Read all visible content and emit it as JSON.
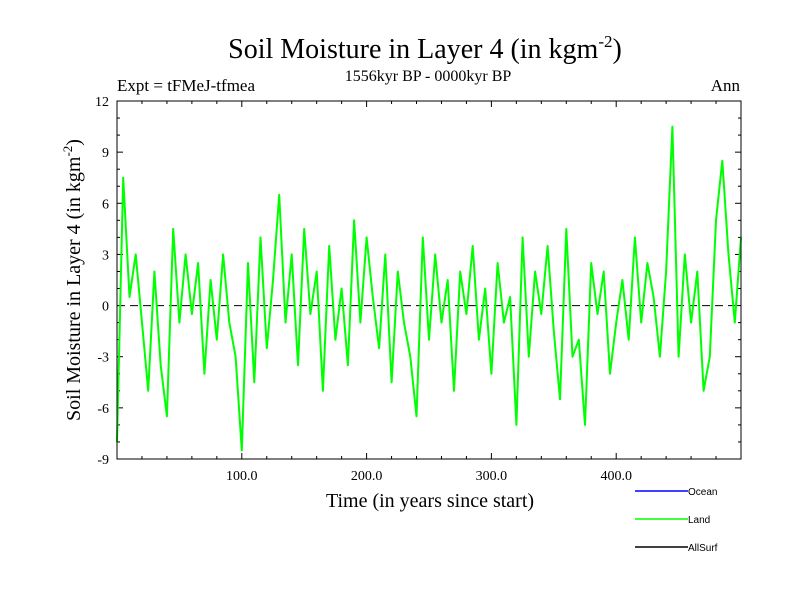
{
  "chart_data": {
    "type": "line",
    "title": "Soil Moisture in Layer 4 (in kgm",
    "title_exp": "-2",
    "title_close": ")",
    "subtitle": "1556kyr BP - 0000kyr BP",
    "expt_label": "Expt = tFMeJ-tfmea",
    "season_label": "Ann",
    "xlabel": "Time (in years since start)",
    "ylabel": "Soil Moisture in Layer 4 (in kgm",
    "ylabel_exp": "-2",
    "ylabel_close": ")",
    "xlim": [
      0,
      500
    ],
    "ylim": [
      -9,
      12
    ],
    "xticks": [
      100,
      200,
      300,
      400
    ],
    "xtick_labels": [
      "100.0",
      "200.0",
      "300.0",
      "400.0"
    ],
    "yticks": [
      -9,
      -6,
      -3,
      0,
      3,
      6,
      9,
      12
    ],
    "ytick_labels": [
      "-9",
      "-6",
      "-3",
      "0",
      "3",
      "6",
      "9",
      "12"
    ],
    "reference_line": 0,
    "legend": [
      {
        "name": "Ocean",
        "color": "#0000ff"
      },
      {
        "name": "Land",
        "color": "#00ff00"
      },
      {
        "name": "AllSurf",
        "color": "#000000"
      }
    ],
    "series": [
      {
        "name": "Land",
        "color": "#00ff00",
        "x": [
          0,
          5,
          10,
          15,
          20,
          25,
          30,
          35,
          40,
          45,
          50,
          55,
          60,
          65,
          70,
          75,
          80,
          85,
          90,
          95,
          100,
          105,
          110,
          115,
          120,
          125,
          130,
          135,
          140,
          145,
          150,
          155,
          160,
          165,
          170,
          175,
          180,
          185,
          190,
          195,
          200,
          205,
          210,
          215,
          220,
          225,
          230,
          235,
          240,
          245,
          250,
          255,
          260,
          265,
          270,
          275,
          280,
          285,
          290,
          295,
          300,
          305,
          310,
          315,
          320,
          325,
          330,
          335,
          340,
          345,
          350,
          355,
          360,
          365,
          370,
          375,
          380,
          385,
          390,
          395,
          400,
          405,
          410,
          415,
          420,
          425,
          430,
          435,
          440,
          445,
          450,
          455,
          460,
          465,
          470,
          475,
          480,
          485,
          490,
          495,
          500
        ],
        "values": [
          -8,
          7.5,
          0.5,
          3,
          -1,
          -5,
          2,
          -3.5,
          -6.5,
          4.5,
          -1,
          3,
          -0.5,
          2.5,
          -4,
          1.5,
          -2,
          3,
          -1,
          -3,
          -8.5,
          2.5,
          -4.5,
          4,
          -2.5,
          1.5,
          6.5,
          -1,
          3,
          -3.5,
          4.5,
          -0.5,
          2,
          -5,
          3.5,
          -2,
          1,
          -3.5,
          5,
          -1,
          4,
          0.5,
          -2.5,
          3,
          -4.5,
          2,
          -1,
          -3,
          -6.5,
          4,
          -2,
          3,
          -1,
          1.5,
          -5,
          2,
          -0.5,
          3.5,
          -2,
          1,
          -4,
          2.5,
          -1,
          0.5,
          -7,
          4,
          -3,
          2,
          -0.5,
          3.5,
          -1.5,
          -5.5,
          4.5,
          -3,
          -2,
          -7,
          2.5,
          -0.5,
          2,
          -4,
          -1,
          1.5,
          -2,
          4,
          -1,
          2.5,
          0.5,
          -3,
          2,
          10.5,
          -3,
          3,
          -1,
          2,
          -5,
          -3,
          5,
          8.5,
          3,
          -1,
          4
        ]
      }
    ]
  }
}
